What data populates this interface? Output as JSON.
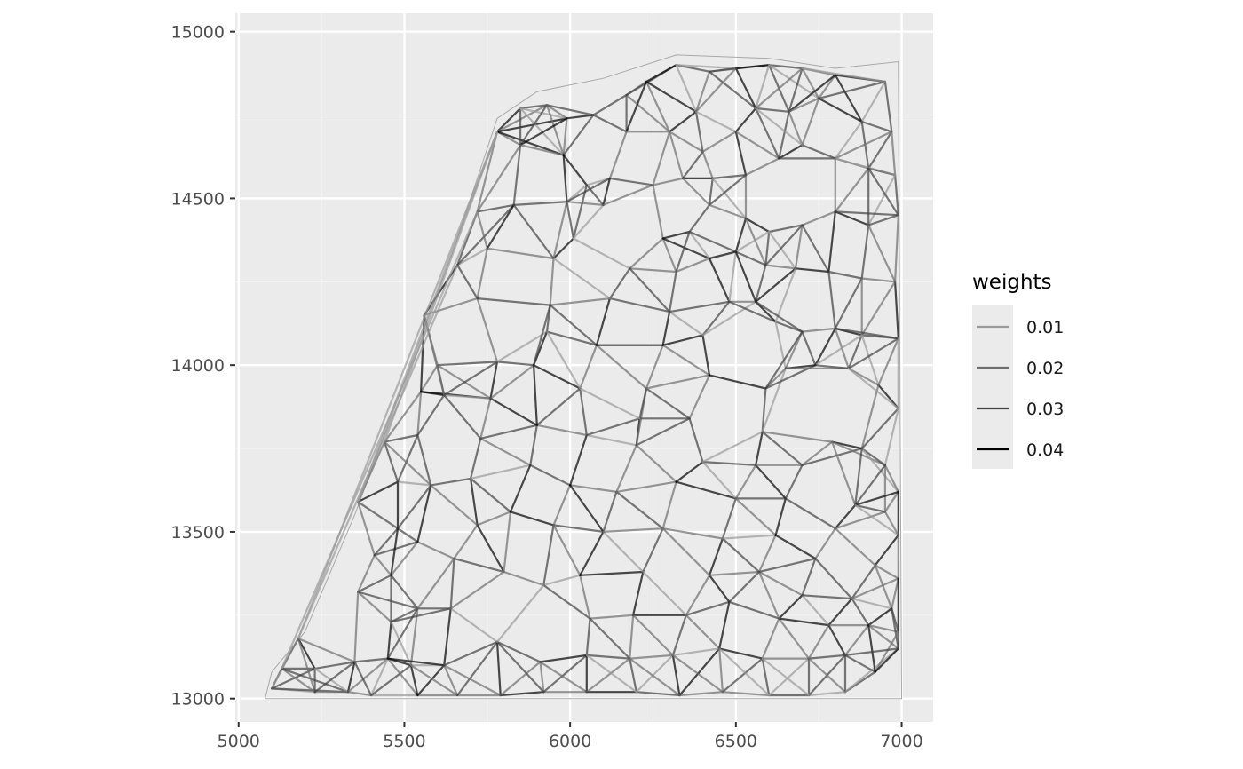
{
  "chart_data": {
    "type": "network",
    "title": "",
    "xlabel": "",
    "ylabel": "",
    "xlim": [
      4990,
      7095
    ],
    "ylim": [
      12930,
      15055
    ],
    "x_ticks": [
      5000,
      5500,
      6000,
      6500,
      7000
    ],
    "y_ticks": [
      13000,
      13500,
      14000,
      14500,
      15000
    ],
    "x_tick_labels": [
      "5000",
      "5500",
      "6000",
      "6500",
      "7000"
    ],
    "y_tick_labels": [
      "13000",
      "13500",
      "14000",
      "14500",
      "15000"
    ],
    "grid": true,
    "legend": {
      "title": "weights",
      "placement": "right",
      "entries": [
        {
          "label": "0.01",
          "value": 0.01
        },
        {
          "label": "0.02",
          "value": 0.02
        },
        {
          "label": "0.03",
          "value": 0.03
        },
        {
          "label": "0.04",
          "value": 0.04
        }
      ]
    },
    "region_boundary": [
      [
        5080,
        13000
      ],
      [
        5100,
        13080
      ],
      [
        5200,
        13200
      ],
      [
        5350,
        13550
      ],
      [
        5500,
        13950
      ],
      [
        5650,
        14350
      ],
      [
        5780,
        14740
      ],
      [
        5900,
        14820
      ],
      [
        6100,
        14860
      ],
      [
        6320,
        14930
      ],
      [
        6600,
        14920
      ],
      [
        6800,
        14890
      ],
      [
        6990,
        14910
      ],
      [
        7000,
        13000
      ]
    ],
    "nodes": [
      [
        5100,
        13030
      ],
      [
        5130,
        13090
      ],
      [
        5180,
        13180
      ],
      [
        5230,
        13090
      ],
      [
        5230,
        13020
      ],
      [
        5330,
        13020
      ],
      [
        5350,
        13110
      ],
      [
        5360,
        13320
      ],
      [
        5360,
        13590
      ],
      [
        5400,
        13010
      ],
      [
        5410,
        13430
      ],
      [
        5450,
        13120
      ],
      [
        5460,
        13230
      ],
      [
        5460,
        13370
      ],
      [
        5480,
        13510
      ],
      [
        5480,
        13650
      ],
      [
        5440,
        13770
      ],
      [
        5540,
        13010
      ],
      [
        5520,
        13100
      ],
      [
        5540,
        13270
      ],
      [
        5540,
        13470
      ],
      [
        5580,
        13640
      ],
      [
        5540,
        13790
      ],
      [
        5550,
        13920
      ],
      [
        5620,
        13910
      ],
      [
        5600,
        14000
      ],
      [
        5560,
        14150
      ],
      [
        5660,
        14300
      ],
      [
        5720,
        14460
      ],
      [
        5780,
        14700
      ],
      [
        5850,
        14770
      ],
      [
        5930,
        14780
      ],
      [
        5990,
        14740
      ],
      [
        6070,
        14750
      ],
      [
        6170,
        14810
      ],
      [
        6230,
        14850
      ],
      [
        6320,
        14900
      ],
      [
        6420,
        14880
      ],
      [
        6500,
        14890
      ],
      [
        6600,
        14900
      ],
      [
        6700,
        14890
      ],
      [
        6800,
        14870
      ],
      [
        6950,
        14850
      ],
      [
        5660,
        13010
      ],
      [
        5620,
        13100
      ],
      [
        5640,
        13270
      ],
      [
        5650,
        13420
      ],
      [
        5720,
        13520
      ],
      [
        5700,
        13660
      ],
      [
        5730,
        13780
      ],
      [
        5760,
        13900
      ],
      [
        5780,
        14010
      ],
      [
        5720,
        14200
      ],
      [
        5750,
        14350
      ],
      [
        5830,
        14480
      ],
      [
        5850,
        14660
      ],
      [
        5980,
        14630
      ],
      [
        6050,
        14540
      ],
      [
        6170,
        14700
      ],
      [
        6300,
        14700
      ],
      [
        6380,
        14760
      ],
      [
        6400,
        14640
      ],
      [
        6500,
        14700
      ],
      [
        6560,
        14770
      ],
      [
        6660,
        14760
      ],
      [
        6750,
        14800
      ],
      [
        6880,
        14730
      ],
      [
        6970,
        14700
      ],
      [
        5790,
        13010
      ],
      [
        5780,
        13170
      ],
      [
        5800,
        13380
      ],
      [
        5820,
        13560
      ],
      [
        5880,
        13700
      ],
      [
        5900,
        13820
      ],
      [
        5890,
        14000
      ],
      [
        5930,
        14100
      ],
      [
        5940,
        14180
      ],
      [
        5950,
        14320
      ],
      [
        6010,
        14380
      ],
      [
        5990,
        14490
      ],
      [
        6100,
        14480
      ],
      [
        6120,
        14560
      ],
      [
        6250,
        14540
      ],
      [
        6340,
        14560
      ],
      [
        6430,
        14560
      ],
      [
        6530,
        14570
      ],
      [
        6630,
        14620
      ],
      [
        6700,
        14660
      ],
      [
        6800,
        14620
      ],
      [
        6900,
        14590
      ],
      [
        6980,
        14570
      ],
      [
        5920,
        13020
      ],
      [
        5910,
        13110
      ],
      [
        5920,
        13340
      ],
      [
        5950,
        13520
      ],
      [
        6000,
        13640
      ],
      [
        6050,
        13790
      ],
      [
        6030,
        13930
      ],
      [
        6080,
        14060
      ],
      [
        6120,
        14200
      ],
      [
        6180,
        14290
      ],
      [
        6280,
        14380
      ],
      [
        6360,
        14400
      ],
      [
        6420,
        14480
      ],
      [
        6530,
        14440
      ],
      [
        6600,
        14400
      ],
      [
        6700,
        14420
      ],
      [
        6800,
        14460
      ],
      [
        6900,
        14420
      ],
      [
        6990,
        14450
      ],
      [
        6050,
        13020
      ],
      [
        6050,
        13130
      ],
      [
        6060,
        13240
      ],
      [
        6030,
        13370
      ],
      [
        6100,
        13500
      ],
      [
        6140,
        13620
      ],
      [
        6200,
        13760
      ],
      [
        6210,
        13840
      ],
      [
        6230,
        13930
      ],
      [
        6280,
        14060
      ],
      [
        6300,
        14160
      ],
      [
        6320,
        14280
      ],
      [
        6420,
        14320
      ],
      [
        6500,
        14340
      ],
      [
        6590,
        14300
      ],
      [
        6680,
        14290
      ],
      [
        6780,
        14280
      ],
      [
        6880,
        14260
      ],
      [
        6980,
        14250
      ],
      [
        6200,
        13020
      ],
      [
        6180,
        13120
      ],
      [
        6190,
        13250
      ],
      [
        6220,
        13380
      ],
      [
        6280,
        13510
      ],
      [
        6320,
        13650
      ],
      [
        6400,
        13710
      ],
      [
        6360,
        13840
      ],
      [
        6420,
        13970
      ],
      [
        6400,
        14090
      ],
      [
        6480,
        14190
      ],
      [
        6560,
        14190
      ],
      [
        6620,
        14130
      ],
      [
        6700,
        14100
      ],
      [
        6800,
        14110
      ],
      [
        6880,
        14090
      ],
      [
        6990,
        14080
      ],
      [
        6330,
        13010
      ],
      [
        6310,
        13130
      ],
      [
        6350,
        13250
      ],
      [
        6420,
        13370
      ],
      [
        6460,
        13480
      ],
      [
        6500,
        13600
      ],
      [
        6560,
        13700
      ],
      [
        6580,
        13800
      ],
      [
        6590,
        13930
      ],
      [
        6650,
        13990
      ],
      [
        6740,
        14000
      ],
      [
        6840,
        13990
      ],
      [
        6930,
        13940
      ],
      [
        6990,
        13870
      ],
      [
        6460,
        13020
      ],
      [
        6450,
        13150
      ],
      [
        6480,
        13290
      ],
      [
        6570,
        13380
      ],
      [
        6620,
        13490
      ],
      [
        6650,
        13600
      ],
      [
        6700,
        13700
      ],
      [
        6790,
        13770
      ],
      [
        6880,
        13750
      ],
      [
        6950,
        13700
      ],
      [
        6990,
        13620
      ],
      [
        6600,
        13010
      ],
      [
        6580,
        13120
      ],
      [
        6630,
        13240
      ],
      [
        6700,
        13310
      ],
      [
        6740,
        13420
      ],
      [
        6800,
        13510
      ],
      [
        6860,
        13580
      ],
      [
        6950,
        13560
      ],
      [
        6990,
        13490
      ],
      [
        6720,
        13010
      ],
      [
        6720,
        13120
      ],
      [
        6780,
        13220
      ],
      [
        6850,
        13300
      ],
      [
        6920,
        13400
      ],
      [
        6990,
        13360
      ],
      [
        6830,
        13020
      ],
      [
        6830,
        13130
      ],
      [
        6900,
        13220
      ],
      [
        6970,
        13270
      ],
      [
        6990,
        13200
      ],
      [
        6920,
        13080
      ],
      [
        6990,
        13150
      ]
    ]
  }
}
